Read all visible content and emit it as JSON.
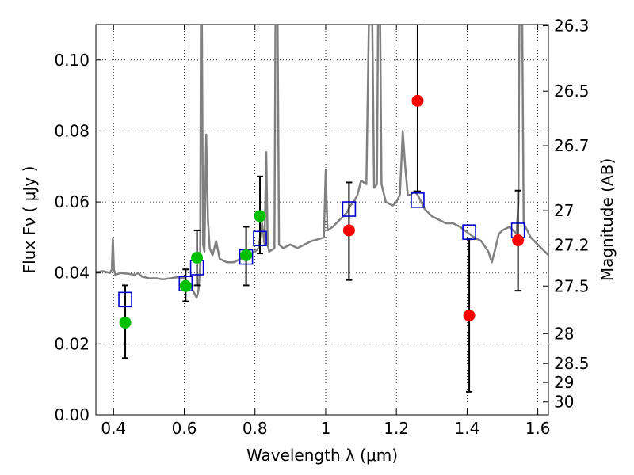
{
  "chart_data": {
    "type": "scatter",
    "xlabel": "Wavelength  λ (μm)",
    "ylabel": "Flux  Fν  ( μJy )",
    "ylabel_right": "Magnitude (AB)",
    "xlim": [
      0.35,
      1.63
    ],
    "ylim": [
      0.0,
      0.11
    ],
    "grid": true,
    "x_ticks": [
      0.4,
      0.6,
      0.8,
      1.0,
      1.2,
      1.4,
      1.6
    ],
    "x_tick_labels": [
      "0.4",
      "0.6",
      "0.8",
      "1",
      "1.2",
      "1.4",
      "1.6"
    ],
    "y_ticks": [
      0.0,
      0.02,
      0.04,
      0.06,
      0.08,
      0.1
    ],
    "y_tick_labels": [
      "0.00",
      "0.02",
      "0.04",
      "0.06",
      "0.08",
      "0.10"
    ],
    "right_ticks": [
      26.3,
      26.5,
      26.7,
      27,
      27.2,
      27.5,
      28,
      28.5,
      29,
      30
    ],
    "right_tick_labels": [
      "26.3",
      "26.5",
      "26.7",
      "27",
      "27.2",
      "27.5",
      "28",
      "28.5",
      "29",
      "30"
    ],
    "model_spectrum": {
      "color": "#808080",
      "points": [
        [
          0.35,
          0.0402
        ],
        [
          0.37,
          0.0405
        ],
        [
          0.39,
          0.04
        ],
        [
          0.395,
          0.041
        ],
        [
          0.398,
          0.0495
        ],
        [
          0.401,
          0.041
        ],
        [
          0.405,
          0.0395
        ],
        [
          0.42,
          0.04
        ],
        [
          0.44,
          0.0398
        ],
        [
          0.46,
          0.0395
        ],
        [
          0.47,
          0.04
        ],
        [
          0.48,
          0.039
        ],
        [
          0.5,
          0.0385
        ],
        [
          0.52,
          0.0385
        ],
        [
          0.54,
          0.0382
        ],
        [
          0.56,
          0.0385
        ],
        [
          0.58,
          0.0388
        ],
        [
          0.6,
          0.0386
        ],
        [
          0.62,
          0.036
        ],
        [
          0.635,
          0.033
        ],
        [
          0.64,
          0.035
        ],
        [
          0.645,
          0.042
        ],
        [
          0.647,
          0.11
        ],
        [
          0.65,
          0.11
        ],
        [
          0.653,
          0.048
        ],
        [
          0.657,
          0.046
        ],
        [
          0.662,
          0.079
        ],
        [
          0.667,
          0.055
        ],
        [
          0.672,
          0.047
        ],
        [
          0.68,
          0.045
        ],
        [
          0.69,
          0.049
        ],
        [
          0.7,
          0.044
        ],
        [
          0.72,
          0.043
        ],
        [
          0.74,
          0.043
        ],
        [
          0.76,
          0.044
        ],
        [
          0.78,
          0.045
        ],
        [
          0.8,
          0.046
        ],
        [
          0.81,
          0.047
        ],
        [
          0.82,
          0.054
        ],
        [
          0.827,
          0.048
        ],
        [
          0.832,
          0.074
        ],
        [
          0.836,
          0.048
        ],
        [
          0.84,
          0.046
        ],
        [
          0.855,
          0.047
        ],
        [
          0.858,
          0.11
        ],
        [
          0.864,
          0.11
        ],
        [
          0.868,
          0.048
        ],
        [
          0.88,
          0.047
        ],
        [
          0.9,
          0.048
        ],
        [
          0.92,
          0.047
        ],
        [
          0.94,
          0.048
        ],
        [
          0.96,
          0.049
        ],
        [
          0.98,
          0.0495
        ],
        [
          0.995,
          0.05
        ],
        [
          1.0,
          0.069
        ],
        [
          1.005,
          0.052
        ],
        [
          1.02,
          0.053
        ],
        [
          1.04,
          0.055
        ],
        [
          1.05,
          0.056
        ],
        [
          1.06,
          0.057
        ],
        [
          1.07,
          0.059
        ],
        [
          1.08,
          0.06
        ],
        [
          1.09,
          0.062
        ],
        [
          1.1,
          0.066
        ],
        [
          1.115,
          0.065
        ],
        [
          1.122,
          0.11
        ],
        [
          1.132,
          0.11
        ],
        [
          1.137,
          0.064
        ],
        [
          1.145,
          0.065
        ],
        [
          1.148,
          0.11
        ],
        [
          1.154,
          0.11
        ],
        [
          1.158,
          0.065
        ],
        [
          1.17,
          0.06
        ],
        [
          1.19,
          0.059
        ],
        [
          1.2,
          0.06
        ],
        [
          1.21,
          0.062
        ],
        [
          1.218,
          0.08
        ],
        [
          1.225,
          0.07
        ],
        [
          1.232,
          0.062
        ],
        [
          1.24,
          0.062
        ],
        [
          1.25,
          0.063
        ],
        [
          1.26,
          0.062
        ],
        [
          1.27,
          0.06
        ],
        [
          1.28,
          0.058
        ],
        [
          1.3,
          0.056
        ],
        [
          1.32,
          0.055
        ],
        [
          1.34,
          0.054
        ],
        [
          1.36,
          0.054
        ],
        [
          1.38,
          0.053
        ],
        [
          1.4,
          0.0515
        ],
        [
          1.42,
          0.05
        ],
        [
          1.44,
          0.049
        ],
        [
          1.46,
          0.046
        ],
        [
          1.47,
          0.043
        ],
        [
          1.48,
          0.047
        ],
        [
          1.49,
          0.051
        ],
        [
          1.5,
          0.052
        ],
        [
          1.52,
          0.053
        ],
        [
          1.54,
          0.051
        ],
        [
          1.545,
          0.06
        ],
        [
          1.548,
          0.11
        ],
        [
          1.556,
          0.11
        ],
        [
          1.56,
          0.054
        ],
        [
          1.58,
          0.05
        ],
        [
          1.6,
          0.048
        ],
        [
          1.62,
          0.046
        ],
        [
          1.63,
          0.045
        ]
      ]
    },
    "series": [
      {
        "marker": "circle",
        "color": "#00c000",
        "points": [
          {
            "x": 0.433,
            "y": 0.026,
            "yerr_low": 0.016,
            "yerr_high": 0.0365
          },
          {
            "x": 0.604,
            "y": 0.0363,
            "yerr_low": 0.032,
            "yerr_high": 0.041
          },
          {
            "x": 0.636,
            "y": 0.0443,
            "yerr_low": 0.0365,
            "yerr_high": 0.052
          },
          {
            "x": 0.775,
            "y": 0.045,
            "yerr_low": 0.0365,
            "yerr_high": 0.053
          },
          {
            "x": 0.814,
            "y": 0.056,
            "yerr_low": 0.0455,
            "yerr_high": 0.0672
          }
        ]
      },
      {
        "marker": "circle",
        "color": "#ff0000",
        "points": [
          {
            "x": 1.066,
            "y": 0.052,
            "yerr_low": 0.038,
            "yerr_high": 0.0655
          },
          {
            "x": 1.26,
            "y": 0.0885,
            "yerr_low": 0.063,
            "yerr_high": 0.11
          },
          {
            "x": 1.406,
            "y": 0.028,
            "yerr_low": 0.0065,
            "yerr_high": 0.0495
          },
          {
            "x": 1.544,
            "y": 0.0492,
            "yerr_low": 0.035,
            "yerr_high": 0.0632
          }
        ]
      },
      {
        "marker": "square",
        "color": "#0000cc",
        "points": [
          {
            "x": 0.433,
            "y": 0.0325
          },
          {
            "x": 0.604,
            "y": 0.037
          },
          {
            "x": 0.636,
            "y": 0.0415
          },
          {
            "x": 0.775,
            "y": 0.0445
          },
          {
            "x": 0.814,
            "y": 0.0497
          },
          {
            "x": 1.066,
            "y": 0.058
          },
          {
            "x": 1.26,
            "y": 0.0605
          },
          {
            "x": 1.406,
            "y": 0.0515
          },
          {
            "x": 1.544,
            "y": 0.052
          }
        ]
      }
    ]
  }
}
